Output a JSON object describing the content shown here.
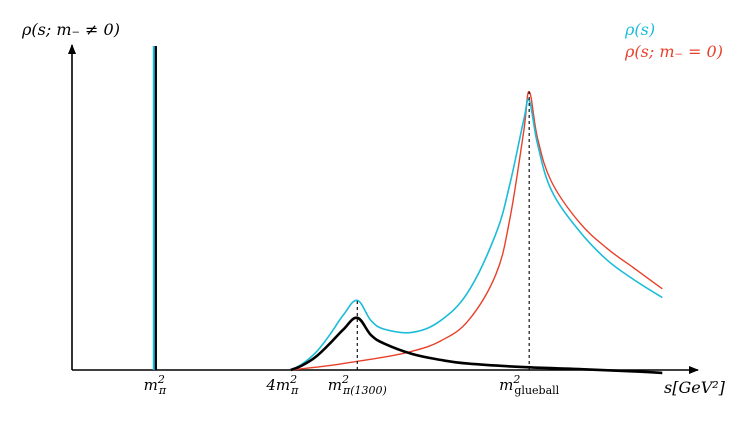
{
  "chart_data": {
    "type": "line",
    "ylabel": "ρ(s; m₋ ≠ 0)",
    "xlabel": "s[GeV²]",
    "x_ticks": [
      {
        "label": "m²π",
        "key": "m_pi2",
        "value": 0.27
      },
      {
        "label": "4m²π",
        "key": "four_m_pi2",
        "value": 0.73
      },
      {
        "label": "m²π(1300)",
        "key": "m_pi1300_2",
        "value": 1.0
      },
      {
        "label": "m²glueball",
        "key": "m_glueball2",
        "value": 1.62
      }
    ],
    "xlim": [
      0,
      2.2
    ],
    "ylim": [
      0,
      1.05
    ],
    "legend_position": "top-right",
    "colors": {
      "rho": "#1bbcd9",
      "rho_m0": "#e8412b",
      "rho_mneq0": "#000000"
    },
    "series": [
      {
        "name": "ρ(s)",
        "color": "#1bbcd9",
        "x": [
          0.76,
          0.8,
          0.85,
          0.9,
          0.95,
          1.0,
          1.05,
          1.1,
          1.2,
          1.3,
          1.4,
          1.5,
          1.55,
          1.6,
          1.62,
          1.65,
          1.7,
          1.8,
          1.9,
          2.0,
          2.1
        ],
        "y": [
          0.0,
          0.02,
          0.06,
          0.12,
          0.19,
          0.24,
          0.17,
          0.14,
          0.13,
          0.17,
          0.27,
          0.47,
          0.64,
          0.86,
          0.93,
          0.78,
          0.62,
          0.48,
          0.38,
          0.31,
          0.25
        ]
      },
      {
        "name": "ρ(s; m₋ = 0)",
        "color": "#e8412b",
        "x": [
          0.76,
          0.9,
          1.0,
          1.1,
          1.2,
          1.3,
          1.4,
          1.5,
          1.55,
          1.6,
          1.62,
          1.65,
          1.7,
          1.8,
          1.9,
          2.0,
          2.1
        ],
        "y": [
          0.0,
          0.015,
          0.03,
          0.045,
          0.065,
          0.1,
          0.17,
          0.33,
          0.52,
          0.82,
          0.96,
          0.8,
          0.65,
          0.51,
          0.42,
          0.35,
          0.28
        ]
      },
      {
        "name": "ρ(s; m₋ ≠ 0)",
        "color": "#000000",
        "x": [
          0.76,
          0.8,
          0.85,
          0.9,
          0.95,
          1.0,
          1.05,
          1.1,
          1.2,
          1.3,
          1.4,
          1.6,
          1.8,
          2.0,
          2.1
        ],
        "y": [
          0.0,
          0.015,
          0.045,
          0.09,
          0.14,
          0.18,
          0.12,
          0.09,
          0.055,
          0.035,
          0.022,
          0.01,
          0.003,
          -0.005,
          -0.01
        ]
      }
    ],
    "delta_peak": {
      "x": 0.27,
      "height": 1.0,
      "colors": [
        "#1bbcd9",
        "#000000"
      ]
    },
    "dashed_markers": [
      {
        "x": 1.0,
        "y_top": 0.24
      },
      {
        "x": 1.62,
        "y_top": 0.96
      }
    ]
  }
}
